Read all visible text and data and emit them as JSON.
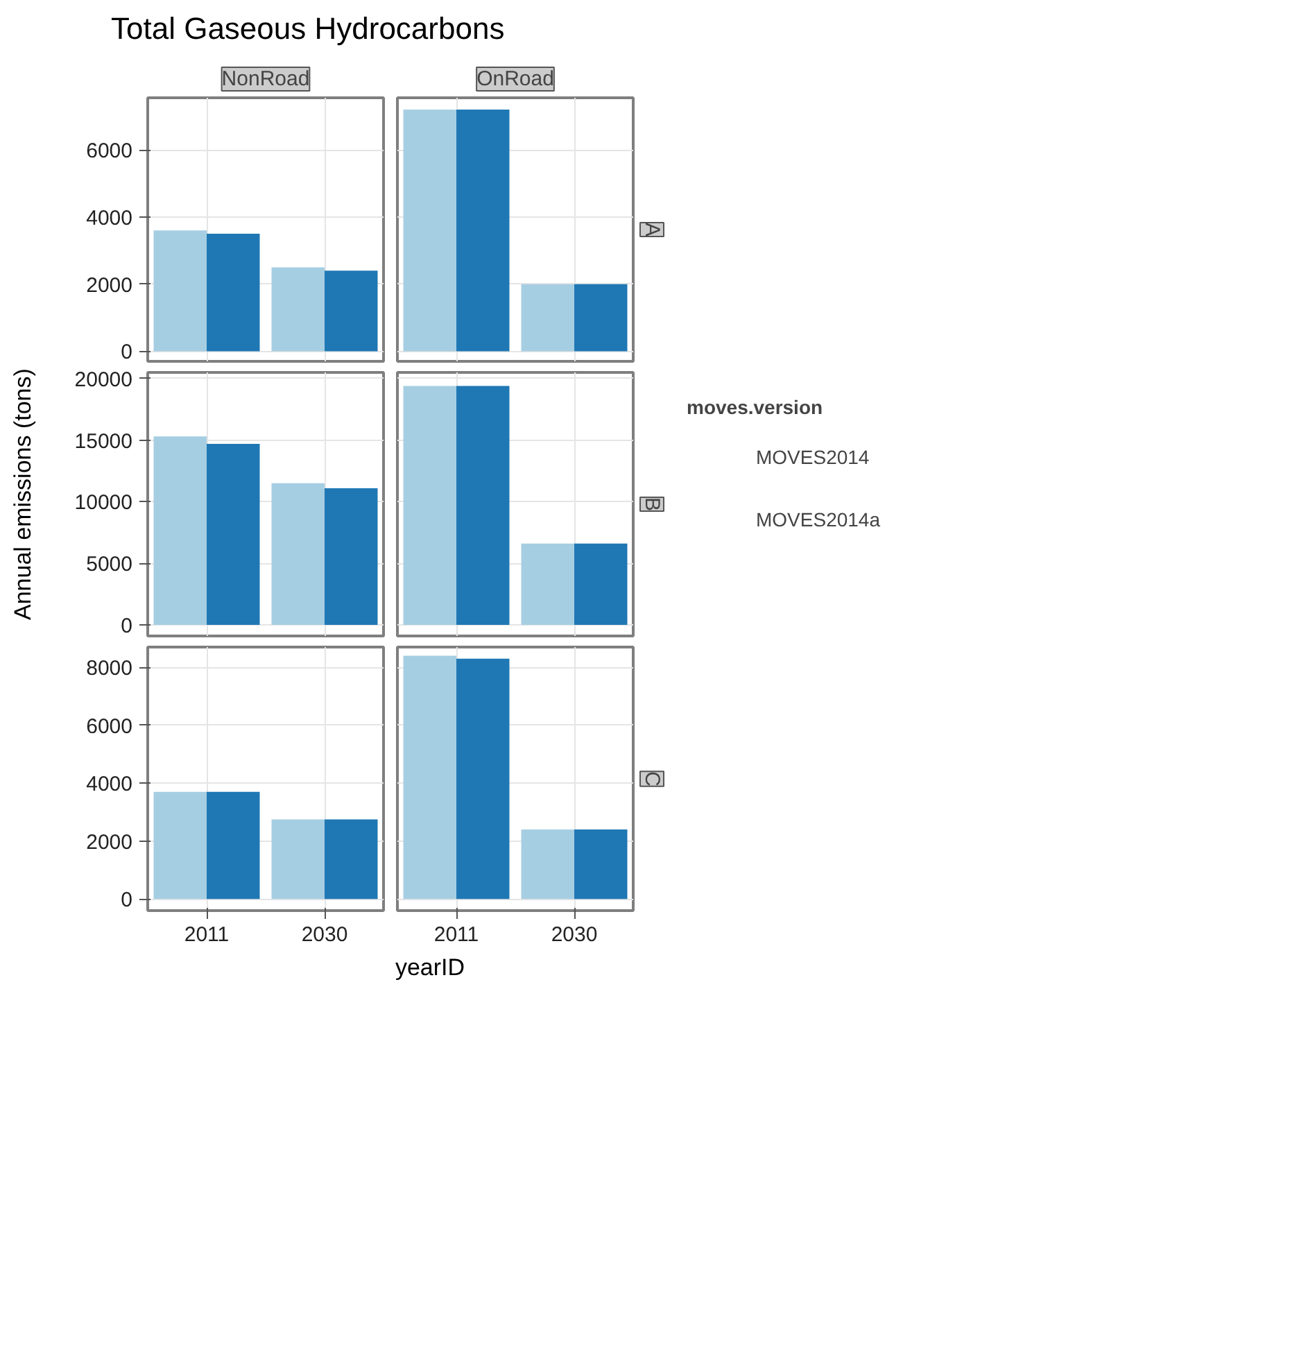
{
  "chart_data": [
    {
      "type": "other",
      "title": "Total Gaseous Hydrocarbons",
      "xlabel": "yearID",
      "ylabel": "Annual emissions (tons)"
    },
    {
      "type": "bar",
      "title": "NonRoad",
      "categories": [
        "2011",
        "2030"
      ],
      "ylim": [
        -300,
        7550
      ],
      "yticks": [
        0,
        2000,
        4000,
        6000
      ],
      "grid": true,
      "tick_labels": "y",
      "series": [
        {
          "color": "#a6cee3",
          "values": [
            3600,
            2500
          ]
        },
        {
          "color": "#1f78b4",
          "values": [
            3500,
            2400
          ]
        }
      ]
    },
    {
      "type": "bar",
      "title": "OnRoad",
      "subtitle": "A",
      "categories": [
        "2011",
        "2030"
      ],
      "ylim": [
        -300,
        7550
      ],
      "yticks": [
        0,
        2000,
        4000,
        6000
      ],
      "grid": true,
      "tick_labels": false,
      "series": [
        {
          "color": "#a6cee3",
          "values": [
            7200,
            2000
          ]
        },
        {
          "color": "#1f78b4",
          "values": [
            7200,
            2000
          ]
        }
      ]
    },
    {
      "type": "bar",
      "categories": [
        "2011",
        "2030"
      ],
      "ylim": [
        -900,
        20500
      ],
      "yticks": [
        0,
        5000,
        10000,
        15000,
        20000
      ],
      "grid": true,
      "tick_labels": "y",
      "series": [
        {
          "color": "#a6cee3",
          "values": [
            15300,
            11500
          ]
        },
        {
          "color": "#1f78b4",
          "values": [
            14700,
            11100
          ]
        }
      ]
    },
    {
      "type": "bar",
      "subtitle": "B",
      "categories": [
        "2011",
        "2030"
      ],
      "ylim": [
        -900,
        20500
      ],
      "yticks": [
        0,
        5000,
        10000,
        15000,
        20000
      ],
      "grid": true,
      "tick_labels": false,
      "legend": "right",
      "legend_title": "moves.version",
      "series": [
        {
          "name": "MOVES2014",
          "color": "#a6cee3",
          "values": [
            19400,
            6600
          ]
        },
        {
          "name": "MOVES2014a",
          "color": "#1f78b4",
          "values": [
            19400,
            6600
          ]
        }
      ]
    },
    {
      "type": "bar",
      "categories": [
        "2011",
        "2030"
      ],
      "ylim": [
        -400,
        8700
      ],
      "yticks": [
        0,
        2000,
        4000,
        6000,
        8000
      ],
      "grid": true,
      "series": [
        {
          "color": "#a6cee3",
          "values": [
            3700,
            2750
          ]
        },
        {
          "color": "#1f78b4",
          "values": [
            3700,
            2750
          ]
        }
      ]
    },
    {
      "type": "bar",
      "subtitle": "C",
      "categories": [
        "2011",
        "2030"
      ],
      "ylim": [
        -400,
        8700
      ],
      "yticks": [
        0,
        2000,
        4000,
        6000,
        8000
      ],
      "grid": true,
      "tick_labels": "x",
      "series": [
        {
          "color": "#a6cee3",
          "values": [
            8400,
            2400
          ]
        },
        {
          "color": "#1f78b4",
          "values": [
            8300,
            2400
          ]
        }
      ]
    }
  ]
}
